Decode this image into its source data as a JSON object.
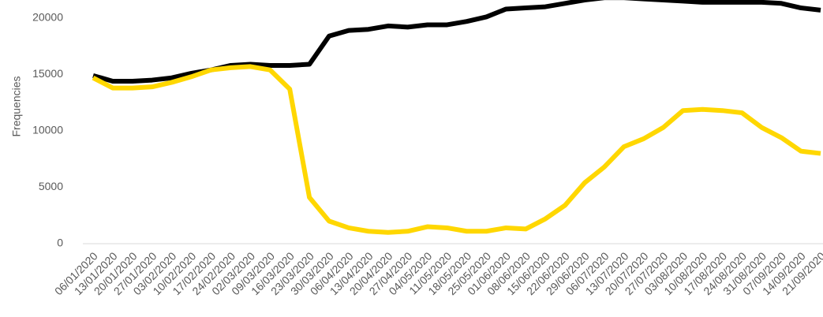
{
  "chart_data": {
    "type": "line",
    "y_label": "Frequencies",
    "categories": [
      "06/01/2020",
      "13/01/2020",
      "20/01/2020",
      "27/01/2020",
      "03/02/2020",
      "10/02/2020",
      "17/02/2020",
      "24/02/2020",
      "02/03/2020",
      "09/03/2020",
      "16/03/2020",
      "23/03/2020",
      "30/03/2020",
      "06/04/2020",
      "13/04/2020",
      "20/04/2020",
      "27/04/2020",
      "04/05/2020",
      "11/05/2020",
      "18/05/2020",
      "25/05/2020",
      "01/06/2020",
      "08/06/2020",
      "15/06/2020",
      "22/06/2020",
      "29/06/2020",
      "06/07/2020",
      "13/07/2020",
      "20/07/2020",
      "27/07/2020",
      "03/08/2020",
      "10/08/2020",
      "17/08/2020",
      "24/08/2020",
      "31/08/2020",
      "07/09/2020",
      "14/09/2020",
      "21/09/2020"
    ],
    "series": [
      {
        "color": "#000000",
        "values": [
          14900,
          14400,
          14400,
          14500,
          14700,
          15100,
          15400,
          15800,
          15900,
          15800,
          15800,
          15900,
          18400,
          18900,
          19000,
          19300,
          19200,
          19400,
          19400,
          19700,
          20100,
          20800,
          20900,
          21000,
          21300,
          21600,
          21800,
          21800,
          21700,
          21600,
          21500,
          21400,
          21400,
          21400,
          21400,
          21300,
          20900,
          20700
        ]
      },
      {
        "color": "#ffd700",
        "values": [
          14700,
          13800,
          13800,
          13900,
          14300,
          14800,
          15400,
          15600,
          15700,
          15400,
          13700,
          4100,
          2000,
          1400,
          1100,
          1000,
          1100,
          1500,
          1400,
          1100,
          1100,
          1400,
          1300,
          2200,
          3400,
          5400,
          6800,
          8600,
          9300,
          10300,
          11800,
          11900,
          11800,
          11600,
          10300,
          9400,
          8200,
          8000
        ]
      }
    ],
    "ylim": [
      0,
      21600
    ],
    "yticks": [
      0,
      5000,
      10000,
      15000,
      20000
    ],
    "grid": false
  }
}
